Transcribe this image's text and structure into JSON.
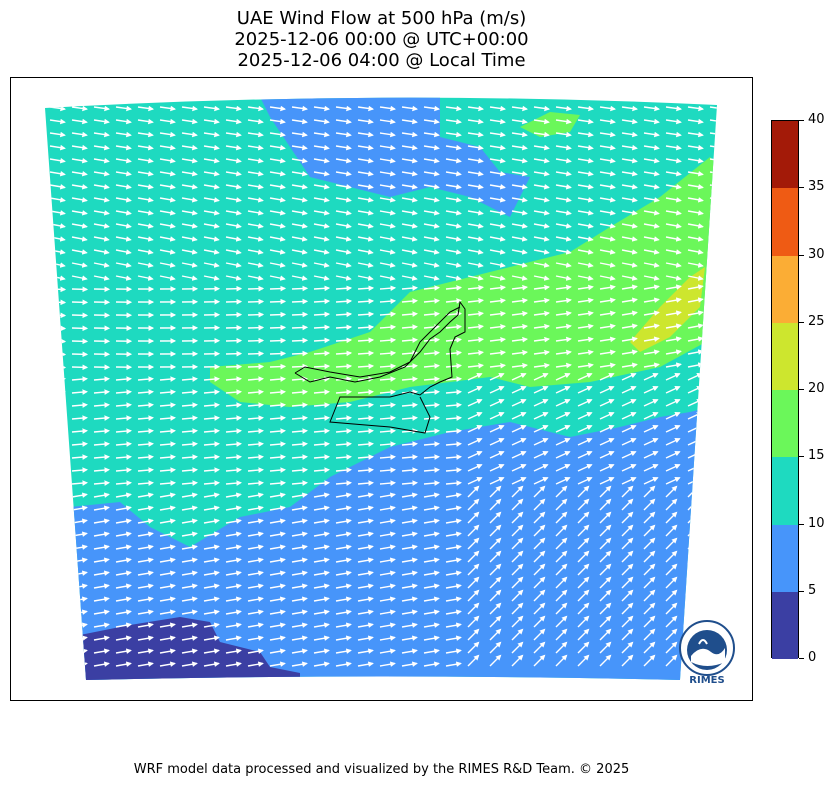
{
  "title": {
    "line1": "UAE Wind Flow at 500 hPa (m/s)",
    "line2": "2025-12-06 00:00 @ UTC+00:00",
    "line3": "2025-12-06 04:00 @ Local Time"
  },
  "colorbar": {
    "levels": [
      "0",
      "5",
      "10",
      "15",
      "20",
      "25",
      "30",
      "35",
      "40"
    ],
    "colors": [
      "#3b3fa3",
      "#4795fa",
      "#1edac0",
      "#6bf75a",
      "#cde62e",
      "#fbad35",
      "#ef5b14",
      "#a31a08"
    ]
  },
  "logo": {
    "text": "RIMES"
  },
  "footer": "WRF model data processed and visualized by the RIMES R&D Team. © 2025"
}
